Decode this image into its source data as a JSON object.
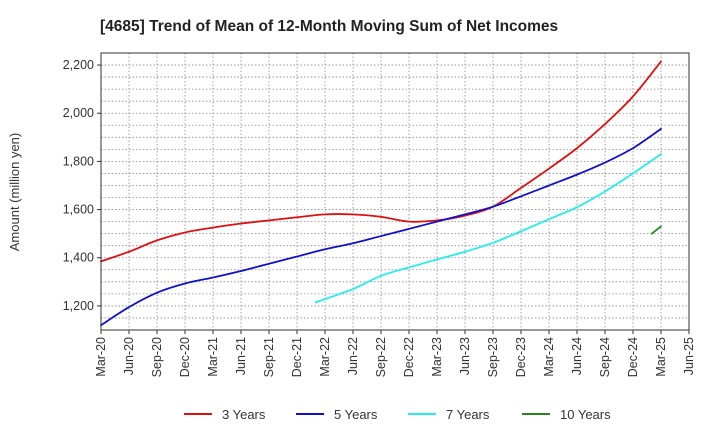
{
  "chart_data": {
    "type": "line",
    "title": "[4685]  Trend of Mean of 12-Month Moving Sum of Net Incomes",
    "ylabel": "Amount (million yen)",
    "xlabel": "",
    "ylim": [
      1100,
      2250
    ],
    "y_ticks": [
      1200,
      1400,
      1600,
      1800,
      2000,
      2200
    ],
    "y_tick_labels": [
      "1,200",
      "1,400",
      "1,600",
      "1,800",
      "2,000",
      "2,200"
    ],
    "x_tick_labels": [
      "Mar-20",
      "Jun-20",
      "Sep-20",
      "Dec-20",
      "Mar-21",
      "Jun-21",
      "Sep-21",
      "Dec-21",
      "Mar-22",
      "Jun-22",
      "Sep-22",
      "Dec-22",
      "Mar-23",
      "Jun-23",
      "Sep-23",
      "Dec-23",
      "Mar-24",
      "Jun-24",
      "Sep-24",
      "Dec-24",
      "Mar-25",
      "Jun-25"
    ],
    "x_range_months": [
      0,
      63
    ],
    "grid": true,
    "legend_position": "bottom",
    "series": [
      {
        "name": "3 Years",
        "color": "#dd1111",
        "points": [
          [
            0,
            1385
          ],
          [
            3,
            1425
          ],
          [
            6,
            1472
          ],
          [
            9,
            1505
          ],
          [
            12,
            1525
          ],
          [
            15,
            1542
          ],
          [
            18,
            1555
          ],
          [
            21,
            1568
          ],
          [
            24,
            1580
          ],
          [
            27,
            1580
          ],
          [
            30,
            1570
          ],
          [
            33,
            1550
          ],
          [
            36,
            1555
          ],
          [
            39,
            1575
          ],
          [
            42,
            1612
          ],
          [
            45,
            1690
          ],
          [
            48,
            1770
          ],
          [
            51,
            1855
          ],
          [
            54,
            1955
          ],
          [
            57,
            2070
          ],
          [
            60,
            2215
          ]
        ]
      },
      {
        "name": "5 Years",
        "color": "#1111cc",
        "points": [
          [
            0,
            1120
          ],
          [
            3,
            1195
          ],
          [
            6,
            1255
          ],
          [
            9,
            1293
          ],
          [
            12,
            1318
          ],
          [
            15,
            1345
          ],
          [
            18,
            1375
          ],
          [
            21,
            1405
          ],
          [
            24,
            1435
          ],
          [
            27,
            1460
          ],
          [
            30,
            1490
          ],
          [
            33,
            1520
          ],
          [
            36,
            1550
          ],
          [
            39,
            1580
          ],
          [
            42,
            1612
          ],
          [
            45,
            1655
          ],
          [
            48,
            1700
          ],
          [
            51,
            1745
          ],
          [
            54,
            1795
          ],
          [
            57,
            1855
          ],
          [
            60,
            1935
          ]
        ]
      },
      {
        "name": "7 Years",
        "color": "#22eeee",
        "points": [
          [
            23,
            1215
          ],
          [
            27,
            1270
          ],
          [
            30,
            1325
          ],
          [
            33,
            1360
          ],
          [
            36,
            1393
          ],
          [
            39,
            1425
          ],
          [
            42,
            1462
          ],
          [
            45,
            1510
          ],
          [
            48,
            1560
          ],
          [
            51,
            1610
          ],
          [
            54,
            1675
          ],
          [
            57,
            1750
          ],
          [
            60,
            1830
          ]
        ]
      },
      {
        "name": "10 Years",
        "color": "#228822",
        "points": [
          [
            59,
            1500
          ],
          [
            60,
            1530
          ]
        ]
      }
    ]
  }
}
